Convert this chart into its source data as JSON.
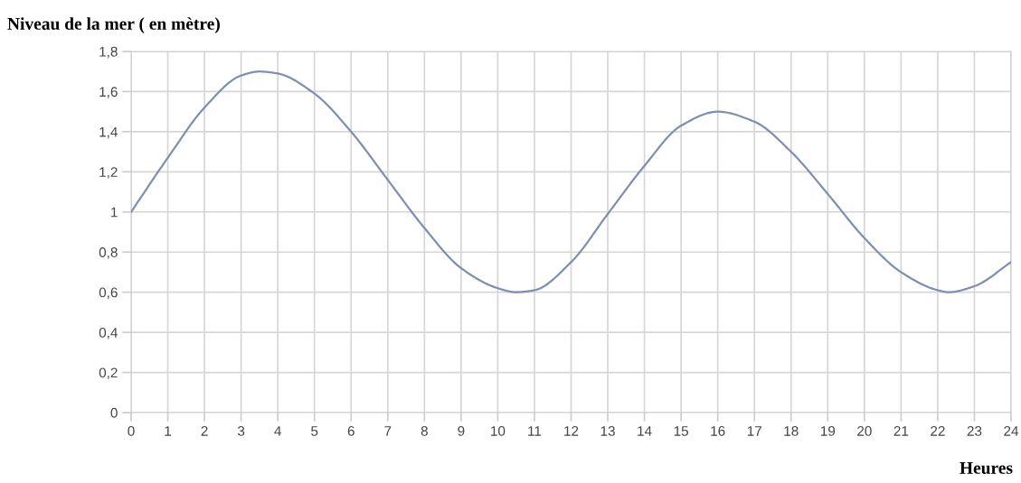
{
  "chart_data": {
    "type": "line",
    "title": "Niveau de la mer ( en mètre)",
    "xlabel": "Heures",
    "x": [
      0,
      1,
      2,
      3,
      3.5,
      4,
      5,
      6,
      7,
      8,
      9,
      10,
      10.5,
      11,
      12,
      13,
      14,
      15,
      16,
      17,
      18,
      19,
      20,
      21,
      22,
      22.3,
      23,
      24
    ],
    "series": [
      {
        "color": "#7f8fb0",
        "values": [
          1.0,
          1.27,
          1.52,
          1.68,
          1.7,
          1.69,
          1.59,
          1.4,
          1.16,
          0.92,
          0.72,
          0.62,
          0.6,
          0.61,
          0.75,
          0.99,
          1.23,
          1.43,
          1.5,
          1.45,
          1.3,
          1.09,
          0.87,
          0.7,
          0.61,
          0.6,
          0.63,
          0.75
        ]
      }
    ],
    "xlim": [
      0,
      24
    ],
    "xticks": [
      0,
      1,
      2,
      3,
      4,
      5,
      6,
      7,
      8,
      9,
      10,
      11,
      12,
      13,
      14,
      15,
      16,
      17,
      18,
      19,
      20,
      21,
      22,
      23,
      24
    ],
    "ylim": [
      0,
      1.8
    ],
    "yticks": [
      {
        "value": 0,
        "label": "0"
      },
      {
        "value": 0.2,
        "label": "0,2"
      },
      {
        "value": 0.4,
        "label": "0,4"
      },
      {
        "value": 0.6,
        "label": "0,6"
      },
      {
        "value": 0.8,
        "label": "0,8"
      },
      {
        "value": 1,
        "label": "1"
      },
      {
        "value": 1.2,
        "label": "1,2"
      },
      {
        "value": 1.4,
        "label": "1,4"
      },
      {
        "value": 1.6,
        "label": "1,6"
      },
      {
        "value": 1.8,
        "label": "1,8"
      }
    ],
    "grid": true,
    "marker": "none",
    "line_style": "solid"
  }
}
